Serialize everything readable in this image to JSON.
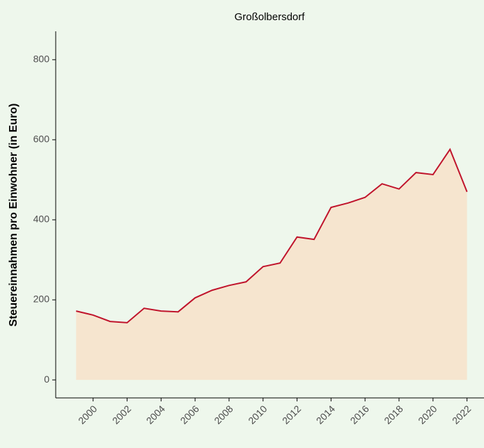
{
  "chart_data": {
    "type": "area",
    "title": "Großolbersdorf",
    "y_label": "Steuereinnahmen pro Einwohner (in Euro)",
    "x": [
      1999,
      2000,
      2001,
      2002,
      2003,
      2004,
      2005,
      2006,
      2007,
      2008,
      2009,
      2010,
      2011,
      2012,
      2013,
      2014,
      2015,
      2016,
      2017,
      2018,
      2019,
      2020,
      2021,
      2022
    ],
    "series": [
      {
        "name": "Steuereinnahmen",
        "color": "#c0142c",
        "fill": "#f6e5cf",
        "values": [
          172,
          162,
          146,
          143,
          179,
          172,
          170,
          205,
          224,
          236,
          245,
          283,
          292,
          357,
          351,
          431,
          442,
          456,
          490,
          477,
          518,
          513,
          576,
          470
        ]
      }
    ],
    "xlim": [
      1997.8,
      2023.0
    ],
    "xticks": [
      2000,
      2002,
      2004,
      2006,
      2008,
      2010,
      2012,
      2014,
      2016,
      2018,
      2020,
      2022
    ],
    "ylim": [
      -45,
      871
    ],
    "yticks": [
      0,
      200,
      400,
      600,
      800
    ],
    "grid": false
  }
}
